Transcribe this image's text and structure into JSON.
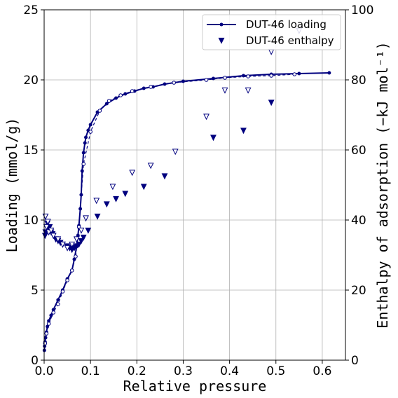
{
  "chart_data": {
    "type": "scatter",
    "x_axis": {
      "label": "Relative pressure",
      "range": [
        0,
        0.65
      ],
      "ticks": [
        0.0,
        0.1,
        0.2,
        0.3,
        0.4,
        0.5,
        0.6
      ],
      "tick_labels": [
        "0.0",
        "0.1",
        "0.2",
        "0.3",
        "0.4",
        "0.5",
        "0.6"
      ]
    },
    "y_left": {
      "label": "Loading (mmol/g)",
      "range": [
        0,
        25
      ],
      "ticks": [
        0,
        5,
        10,
        15,
        20,
        25
      ],
      "tick_labels": [
        "0",
        "5",
        "10",
        "15",
        "20",
        "25"
      ]
    },
    "y_right": {
      "label": "Enthalpy of adsorption (−kJ mol⁻¹)",
      "range": [
        0,
        100
      ],
      "ticks": [
        0,
        20,
        40,
        60,
        80,
        100
      ],
      "tick_labels": [
        "0",
        "20",
        "40",
        "60",
        "80",
        "100"
      ]
    },
    "grid": true,
    "legend_position": "top-right",
    "colors": {
      "series": "#00007f"
    },
    "series": [
      {
        "name": "DUT-46 loading",
        "kind": "line-markers",
        "axis": "left",
        "x": [
          0.0005,
          0.001,
          0.002,
          0.003,
          0.005,
          0.007,
          0.01,
          0.015,
          0.02,
          0.03,
          0.04,
          0.05,
          0.06,
          0.065,
          0.07,
          0.073,
          0.075,
          0.078,
          0.08,
          0.082,
          0.085,
          0.088,
          0.09,
          0.095,
          0.1,
          0.115,
          0.135,
          0.155,
          0.175,
          0.195,
          0.215,
          0.235,
          0.26,
          0.3,
          0.365,
          0.43,
          0.49,
          0.55,
          0.615
        ],
        "y": [
          0.7,
          1.0,
          1.3,
          1.6,
          2.0,
          2.4,
          2.8,
          3.2,
          3.6,
          4.3,
          5.0,
          5.8,
          6.4,
          7.2,
          8.1,
          8.9,
          9.6,
          10.8,
          11.8,
          13.5,
          14.8,
          15.5,
          15.9,
          16.4,
          16.8,
          17.7,
          18.3,
          18.7,
          19.0,
          19.2,
          19.4,
          19.5,
          19.7,
          19.9,
          20.1,
          20.3,
          20.4,
          20.45,
          20.5
        ]
      },
      {
        "name": "",
        "kind": "open-circles",
        "axis": "left",
        "x": [
          0.002,
          0.005,
          0.01,
          0.02,
          0.03,
          0.04,
          0.05,
          0.06,
          0.068,
          0.075,
          0.085,
          0.1,
          0.12,
          0.14,
          0.165,
          0.19,
          0.23,
          0.28,
          0.35,
          0.39,
          0.44,
          0.49,
          0.54
        ],
        "y": [
          1.2,
          1.9,
          2.6,
          3.4,
          4.0,
          4.9,
          5.7,
          6.4,
          7.4,
          9.5,
          14.0,
          16.3,
          17.8,
          18.5,
          18.9,
          19.2,
          19.5,
          19.8,
          20.0,
          20.15,
          20.25,
          20.3,
          20.4
        ]
      },
      {
        "name": "DUT-46 enthalpy",
        "kind": "filled-triangles",
        "axis": "right",
        "x": [
          0.002,
          0.003,
          0.005,
          0.007,
          0.01,
          0.012,
          0.015,
          0.018,
          0.02,
          0.025,
          0.03,
          0.035,
          0.04,
          0.05,
          0.055,
          0.06,
          0.065,
          0.07,
          0.075,
          0.08,
          0.085,
          0.095,
          0.115,
          0.135,
          0.155,
          0.175,
          0.215,
          0.26,
          0.365,
          0.43,
          0.49
        ],
        "y": [
          35.5,
          36.5,
          38.0,
          39.0,
          37.5,
          38.0,
          36.5,
          36.0,
          35.5,
          34.5,
          34.0,
          33.5,
          33.0,
          32.5,
          32.0,
          31.5,
          32.0,
          32.5,
          33.0,
          34.0,
          35.0,
          37.0,
          41.0,
          44.5,
          46.0,
          47.5,
          49.5,
          52.5,
          63.5,
          65.5,
          73.5
        ]
      },
      {
        "name": "",
        "kind": "open-triangles",
        "axis": "right",
        "x": [
          0.003,
          0.005,
          0.008,
          0.01,
          0.015,
          0.02,
          0.03,
          0.04,
          0.05,
          0.06,
          0.07,
          0.08,
          0.09,
          0.113,
          0.148,
          0.19,
          0.23,
          0.283,
          0.35,
          0.39,
          0.44,
          0.49,
          0.55
        ],
        "y": [
          41.0,
          38.0,
          39.5,
          36.5,
          37.0,
          35.5,
          34.5,
          33.0,
          32.0,
          33.0,
          34.5,
          37.0,
          40.5,
          45.5,
          49.5,
          53.5,
          55.5,
          59.5,
          69.5,
          77.0,
          77.0,
          88.0,
          94.0
        ]
      }
    ]
  }
}
